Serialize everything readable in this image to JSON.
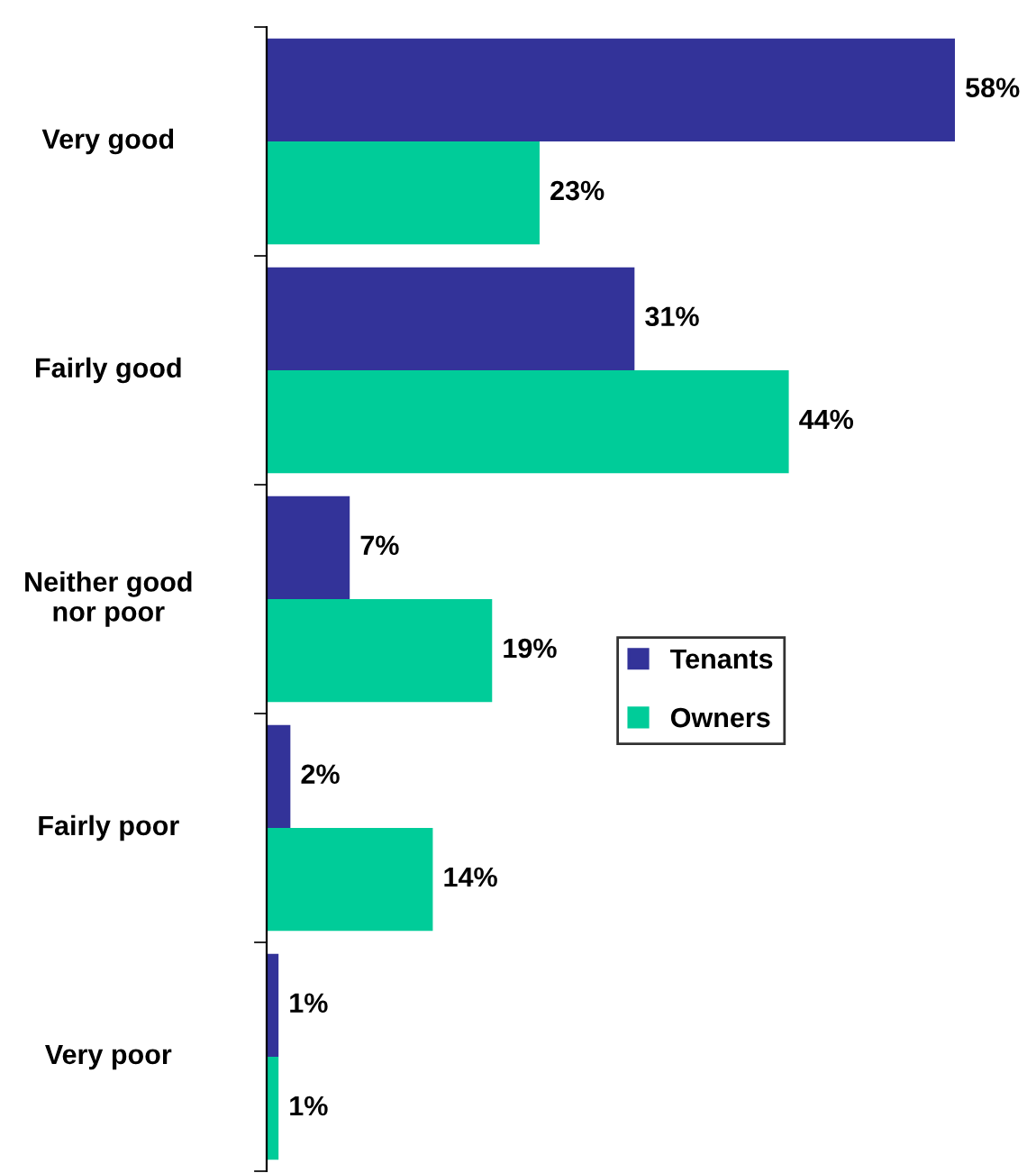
{
  "chart_data": {
    "type": "bar",
    "orientation": "horizontal",
    "categories": [
      "Very good",
      "Fairly good",
      "Neither good\nnor poor",
      "Fairly poor",
      "Very poor"
    ],
    "series": [
      {
        "name": "Tenants",
        "color": "#333399",
        "values": [
          58,
          31,
          7,
          2,
          1
        ],
        "value_labels": [
          "58%",
          "31%",
          "7%",
          "2%",
          "1%"
        ]
      },
      {
        "name": "Owners",
        "color": "#00cc99",
        "values": [
          23,
          44,
          19,
          14,
          1
        ],
        "value_labels": [
          "23%",
          "44%",
          "19%",
          "14%",
          "1%"
        ]
      }
    ],
    "legend": "center right"
  }
}
